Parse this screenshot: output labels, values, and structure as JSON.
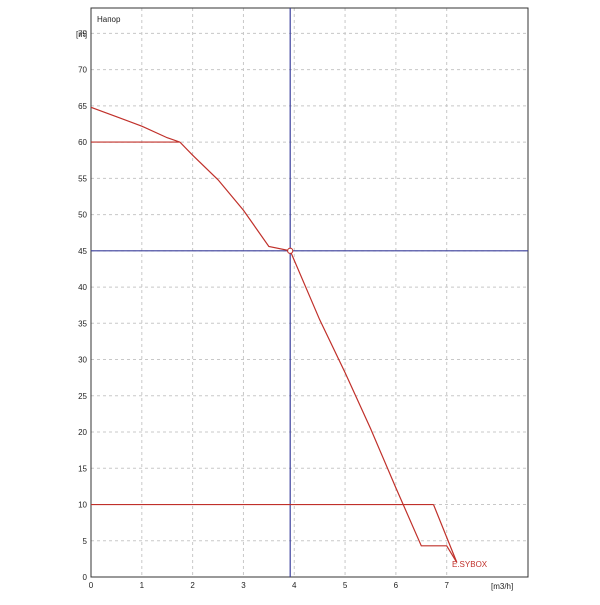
{
  "chart_data": {
    "type": "line",
    "title": "Напор",
    "ylabel": "[m]",
    "xlabel": "[m3/h]",
    "xlim": [
      0,
      8.6
    ],
    "ylim": [
      0,
      78.5
    ],
    "x_ticks": [
      0,
      1,
      2,
      3,
      4,
      5,
      6,
      7
    ],
    "y_ticks": [
      0,
      5,
      10,
      15,
      20,
      25,
      30,
      35,
      40,
      45,
      50,
      55,
      60,
      65,
      70,
      75
    ],
    "grid": true,
    "series": [
      {
        "name": "E.SYBOX",
        "color": "#c0302a",
        "x": [
          0,
          0.5,
          1.0,
          1.5,
          1.75,
          2.0,
          2.5,
          3.0,
          3.5,
          3.92,
          4.5,
          5.0,
          5.5,
          6.0,
          6.5,
          6.74,
          7.0,
          7.2
        ],
        "y": [
          64.8,
          63.5,
          62.2,
          60.6,
          60.0,
          58.2,
          54.8,
          50.6,
          45.6,
          45.0,
          35.5,
          28.2,
          20.5,
          12.3,
          4.3,
          10.0,
          4.3,
          2.0
        ]
      }
    ],
    "reference_lines": {
      "duty_flow": 3.92,
      "duty_head": 45,
      "operating_point": {
        "x": 3.92,
        "y": 45
      },
      "red_horizontals": [
        {
          "y": 60,
          "x_from": 0,
          "x_to": 1.75
        },
        {
          "y": 10,
          "x_from": 0,
          "x_to": 6.74
        }
      ],
      "blue_color": "#3a3f9c",
      "red_color": "#c0302a"
    },
    "grid_color": "#c8c8c8",
    "axis_color": "#333333"
  }
}
